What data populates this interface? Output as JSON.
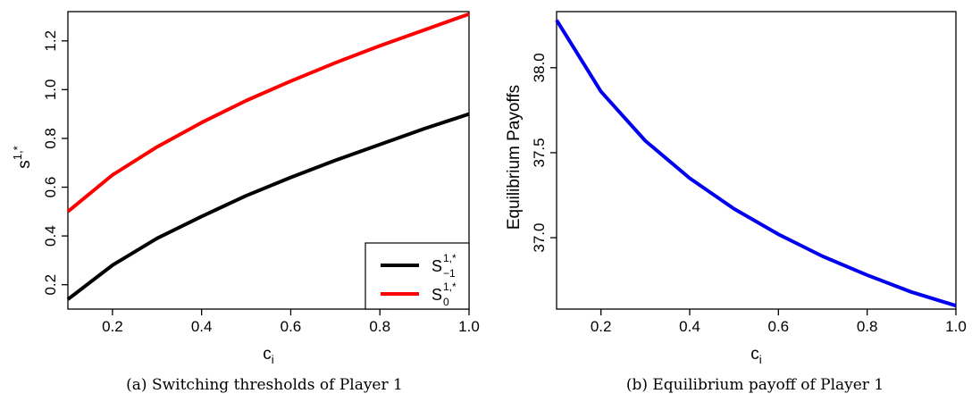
{
  "chart_data": [
    {
      "type": "line",
      "caption": "(a) Switching thresholds of Player 1",
      "xlabel": {
        "main": "c",
        "sub": "i"
      },
      "ylabel": {
        "main": "s",
        "sup": "1,*"
      },
      "xlim": [
        0.1,
        1.0
      ],
      "ylim": [
        0.1,
        1.32
      ],
      "xticks": [
        {
          "value": 0.2,
          "label": "0.2"
        },
        {
          "value": 0.4,
          "label": "0.4"
        },
        {
          "value": 0.6,
          "label": "0.6"
        },
        {
          "value": 0.8,
          "label": "0.8"
        },
        {
          "value": 1.0,
          "label": "1.0"
        }
      ],
      "yticks": [
        {
          "value": 0.2,
          "label": "0.2"
        },
        {
          "value": 0.4,
          "label": "0.4"
        },
        {
          "value": 0.6,
          "label": "0.6"
        },
        {
          "value": 0.8,
          "label": "0.8"
        },
        {
          "value": 1.0,
          "label": "1.0"
        },
        {
          "value": 1.2,
          "label": "1.2"
        }
      ],
      "x": [
        0.1,
        0.2,
        0.3,
        0.4,
        0.5,
        0.6,
        0.7,
        0.8,
        0.9,
        1.0
      ],
      "series": [
        {
          "name": "S_{-1}^{1,*}",
          "legend": {
            "main": "S",
            "sup": "1,*",
            "sub": "−1"
          },
          "color": "#000000",
          "values": [
            0.14,
            0.28,
            0.39,
            0.48,
            0.565,
            0.64,
            0.71,
            0.775,
            0.84,
            0.9
          ]
        },
        {
          "name": "S_0^{1,*}",
          "legend": {
            "main": "S",
            "sup": "1,*",
            "sub": "0"
          },
          "color": "#ff0000",
          "values": [
            0.5,
            0.65,
            0.765,
            0.865,
            0.955,
            1.035,
            1.11,
            1.18,
            1.245,
            1.31
          ]
        }
      ],
      "legend_position": "bottom-right",
      "grid": false
    },
    {
      "type": "line",
      "caption": "(b) Equilibrium payoff of Player 1",
      "xlabel": {
        "main": "c",
        "sub": "i"
      },
      "ylabel": {
        "main": "Equilibrium Payoffs"
      },
      "xlim": [
        0.1,
        1.0
      ],
      "ylim": [
        36.58,
        38.33
      ],
      "xticks": [
        {
          "value": 0.2,
          "label": "0.2"
        },
        {
          "value": 0.4,
          "label": "0.4"
        },
        {
          "value": 0.6,
          "label": "0.6"
        },
        {
          "value": 0.8,
          "label": "0.8"
        },
        {
          "value": 1.0,
          "label": "1.0"
        }
      ],
      "yticks": [
        {
          "value": 37.0,
          "label": "37.0"
        },
        {
          "value": 37.5,
          "label": "37.5"
        },
        {
          "value": 38.0,
          "label": "38.0"
        }
      ],
      "x": [
        0.1,
        0.2,
        0.3,
        0.4,
        0.5,
        0.6,
        0.7,
        0.8,
        0.9,
        1.0
      ],
      "series": [
        {
          "color": "#0000ee",
          "values": [
            38.28,
            37.86,
            37.57,
            37.35,
            37.17,
            37.02,
            36.89,
            36.78,
            36.68,
            36.6
          ]
        }
      ],
      "grid": false
    }
  ]
}
